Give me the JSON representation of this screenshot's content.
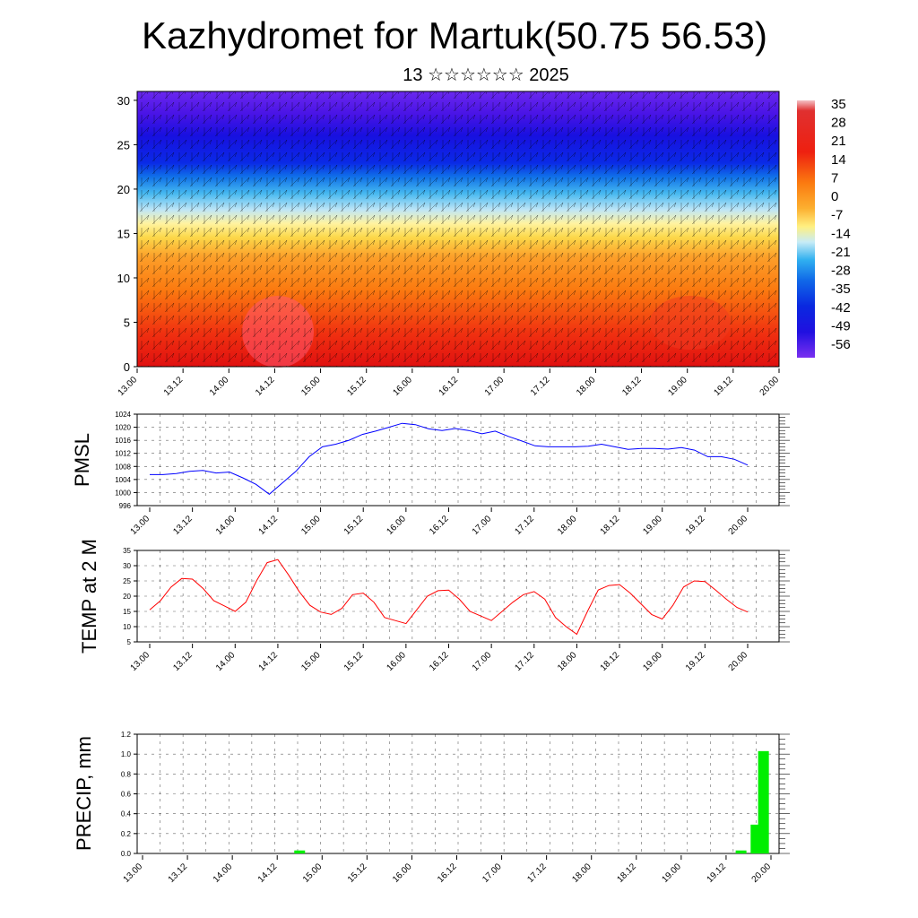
{
  "header": {
    "title": "Kazhydromet for Martuk(50.75 56.53)",
    "subtitle": "13 ☆☆☆☆☆☆ 2025"
  },
  "colors": {
    "pmsl_line": "#0000ff",
    "temp_line": "#ff0000",
    "precip_bar": "#00ee00",
    "grid": "#000000"
  },
  "chart_data": [
    {
      "type": "heatmap",
      "name": "cross-section",
      "x_ticks": [
        "13.00",
        "13.12",
        "14.00",
        "14.12",
        "15.00",
        "15.12",
        "16.00",
        "16.12",
        "17.00",
        "17.12",
        "18.00",
        "18.12",
        "19.00",
        "19.12",
        "20.00"
      ],
      "y_ticks": [
        "0",
        "5",
        "10",
        "15",
        "20",
        "25",
        "30"
      ],
      "ylim": [
        0,
        31
      ],
      "colorbar_labels": [
        "35",
        "28",
        "21",
        "14",
        "7",
        "0",
        "-7",
        "-14",
        "-21",
        "-28",
        "-35",
        "-42",
        "-49",
        "-56"
      ],
      "overlay": "wind barbs"
    },
    {
      "type": "line",
      "name": "pmsl",
      "ylabel": "PMSL",
      "ylim": [
        996,
        1024
      ],
      "y_ticks": [
        "1024",
        "1020",
        "1016",
        "1012",
        "1008",
        "1004",
        "1000",
        "996"
      ],
      "x_ticks": [
        "13.00",
        "13.12",
        "14.00",
        "14.12",
        "15.00",
        "15.12",
        "16.00",
        "16.12",
        "17.00",
        "17.12",
        "18.00",
        "18.12",
        "19.00",
        "19.12",
        "20.00"
      ],
      "values": [
        1005.5,
        1005.5,
        1005.8,
        1006.5,
        1006.8,
        1006.0,
        1006.3,
        1004.5,
        1002.5,
        999.5,
        1003.0,
        1006.5,
        1011.0,
        1014.0,
        1014.8,
        1016.0,
        1017.8,
        1018.8,
        1020.0,
        1021.2,
        1020.8,
        1019.5,
        1019.0,
        1019.6,
        1019.0,
        1018.0,
        1018.8,
        1017.2,
        1015.8,
        1014.3,
        1014.0,
        1014.0,
        1014.0,
        1014.2,
        1014.8,
        1014.0,
        1013.2,
        1013.5,
        1013.5,
        1013.3,
        1013.8,
        1013.0,
        1011.0,
        1011.0,
        1010.2,
        1008.4
      ]
    },
    {
      "type": "line",
      "name": "temp2m",
      "ylabel": "TEMP at 2 M",
      "ylim": [
        5,
        35
      ],
      "y_ticks": [
        "35",
        "30",
        "25",
        "20",
        "15",
        "10",
        "5"
      ],
      "x_ticks": [
        "13.00",
        "13.12",
        "14.00",
        "14.12",
        "15.00",
        "15.12",
        "16.00",
        "16.12",
        "17.00",
        "17.12",
        "18.00",
        "18.12",
        "19.00",
        "19.12",
        "20.00"
      ],
      "values": [
        15.5,
        18.5,
        23.0,
        25.8,
        25.6,
        22.5,
        18.5,
        16.8,
        15.0,
        18.0,
        25.0,
        31.0,
        32.0,
        27.0,
        21.5,
        17.0,
        14.8,
        14.0,
        16.0,
        20.5,
        21.0,
        18.0,
        13.0,
        12.0,
        11.0,
        15.5,
        20.0,
        21.8,
        22.0,
        19.0,
        15.0,
        13.5,
        12.0,
        15.0,
        18.0,
        20.5,
        21.5,
        19.0,
        13.0,
        10.0,
        7.5,
        15.0,
        22.0,
        23.5,
        23.8,
        21.0,
        17.5,
        14.0,
        12.5,
        17.0,
        23.0,
        25.0,
        24.8,
        22.0,
        19.0,
        16.3,
        14.8
      ]
    },
    {
      "type": "bar",
      "name": "precip",
      "ylabel": "PRECIP, mm",
      "ylim": [
        0,
        1.2
      ],
      "y_ticks": [
        "1.2",
        "1.0",
        "0.8",
        "0.6",
        "0.4",
        "0.2",
        "0.0"
      ],
      "x_ticks": [
        "13.00",
        "13.12",
        "14.00",
        "14.12",
        "15.00",
        "15.12",
        "16.00",
        "16.12",
        "17.00",
        "17.12",
        "18.00",
        "18.12",
        "19.00",
        "19.12",
        "20.00"
      ],
      "bars": [
        {
          "x": 42,
          "value": 0.03
        },
        {
          "x": 160,
          "value": 0.03
        },
        {
          "x": 164,
          "value": 0.29
        },
        {
          "x": 166,
          "value": 1.03
        }
      ]
    }
  ]
}
